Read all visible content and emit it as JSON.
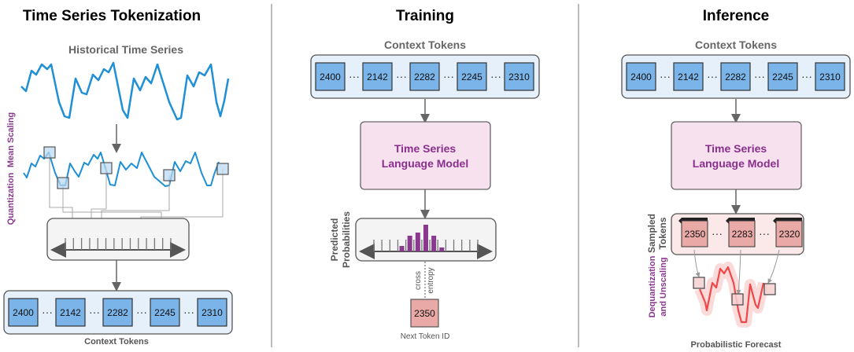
{
  "sections": {
    "tokenization": {
      "title": "Time Series Tokenization",
      "historical_label": "Historical Time Series",
      "mean_scaling_label": "Mean Scaling",
      "quantization_label": "Quantization",
      "context_tokens": [
        "2400",
        "2142",
        "2282",
        "2245",
        "2310"
      ],
      "context_label": "Context Tokens"
    },
    "training": {
      "title": "Training",
      "context_label": "Context Tokens",
      "context_tokens": [
        "2400",
        "2142",
        "2282",
        "2245",
        "2310"
      ],
      "model_line1": "Time Series",
      "model_line2": "Language Model",
      "predicted_line1": "Predicted",
      "predicted_line2": "Probabilities",
      "loss_line1": "cross",
      "loss_line2": "entropy",
      "next_token": "2350",
      "next_token_label": "Next Token ID"
    },
    "inference": {
      "title": "Inference",
      "context_label": "Context Tokens",
      "context_tokens": [
        "2400",
        "2142",
        "2282",
        "2245",
        "2310"
      ],
      "model_line1": "Time Series",
      "model_line2": "Language Model",
      "sampled_line1": "Sampled",
      "sampled_line2": "Tokens",
      "sampled_tokens": [
        "2350",
        "2283",
        "2320"
      ],
      "dequant_line1": "Dequantization",
      "dequant_line2": "and Unscaling",
      "forecast_label": "Probabilistic Forecast"
    }
  },
  "ellipsis": "···",
  "colors": {
    "series": "#1f8fd6",
    "token_blue": "#7ab4e8",
    "token_red": "#e9a9a6",
    "model_fill": "#f8e1ee",
    "model_text": "#8a2f8e",
    "bar": "#8a3a8e",
    "forecast": "#f04848"
  }
}
